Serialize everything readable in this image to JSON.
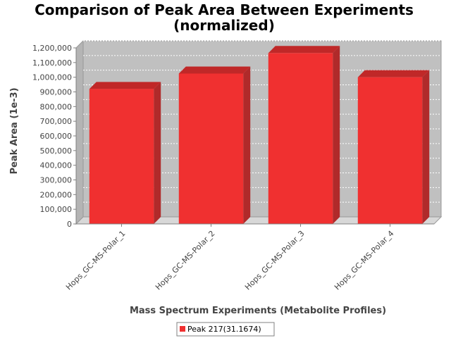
{
  "chart_data": {
    "type": "bar",
    "title": "Comparison of Peak Area Between Experiments",
    "subtitle": "(normalized)",
    "xlabel": "Mass Spectrum Experiments (Metabolite Profiles)",
    "ylabel": "Peak Area (1e-3)",
    "categories": [
      "Hops_GC-MS-Polar_1",
      "Hops_GC-MS-Polar_2",
      "Hops_GC-MS-Polar_3",
      "Hops_GC-MS-Polar_4"
    ],
    "series": [
      {
        "name": "Peak 217(31.1674)",
        "values": [
          920000,
          1025000,
          1165000,
          1000000
        ],
        "color": "#f03030"
      }
    ],
    "ylim": [
      0,
      1200000
    ],
    "yticks": [
      0,
      100000,
      200000,
      300000,
      400000,
      500000,
      600000,
      700000,
      800000,
      900000,
      1000000,
      1100000,
      1200000
    ],
    "ytick_labels": [
      "0",
      "100,000",
      "200,000",
      "300,000",
      "400,000",
      "500,000",
      "600,000",
      "700,000",
      "800,000",
      "900,000",
      "1,000,000",
      "1,100,000",
      "1,200,000"
    ],
    "grid": true,
    "legend_position": "bottom",
    "plot_background": "#c0c0c0",
    "bar_side_color": "#b02a2a",
    "bar_top_color": "#c02828"
  }
}
